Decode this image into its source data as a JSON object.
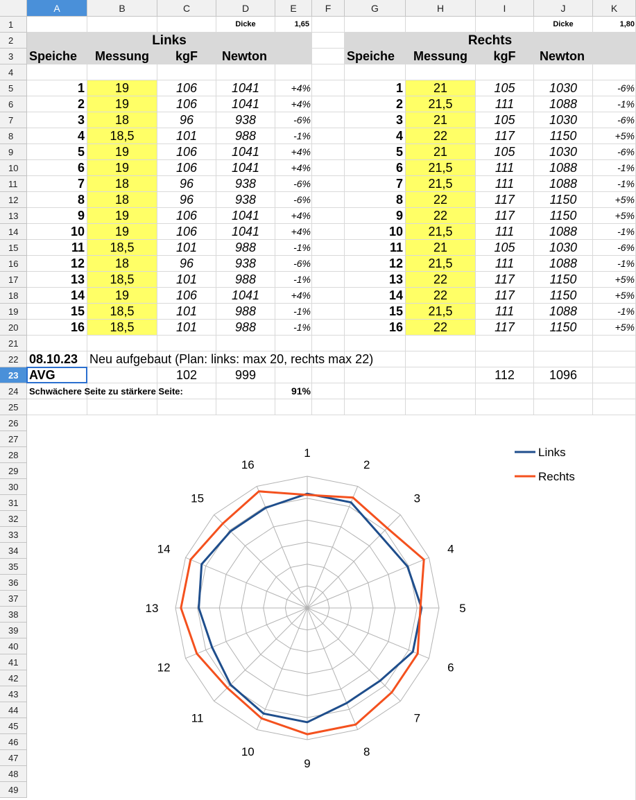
{
  "columns": [
    "A",
    "B",
    "C",
    "D",
    "E",
    "F",
    "G",
    "H",
    "I",
    "J",
    "K"
  ],
  "selected_column": "A",
  "selected_row": "23",
  "rows": [
    "1",
    "2",
    "3",
    "4",
    "5",
    "6",
    "7",
    "8",
    "9",
    "10",
    "11",
    "12",
    "13",
    "14",
    "15",
    "16",
    "17",
    "18",
    "19",
    "20",
    "21",
    "22",
    "23",
    "24",
    "25",
    "26",
    "27",
    "28",
    "29",
    "30",
    "31",
    "32",
    "33",
    "34",
    "35",
    "36",
    "37",
    "38",
    "39",
    "40",
    "41",
    "42",
    "43",
    "44",
    "45",
    "46",
    "47",
    "48",
    "49"
  ],
  "dicke": {
    "label": "Dicke",
    "left_value": "1,65",
    "right_value": "1,80"
  },
  "left": {
    "title": "Links",
    "headers": [
      "Speiche",
      "Messung",
      "kgF",
      "Newton"
    ],
    "rows": [
      [
        "1",
        "19",
        "106",
        "1041",
        "+4%"
      ],
      [
        "2",
        "19",
        "106",
        "1041",
        "+4%"
      ],
      [
        "3",
        "18",
        "96",
        "938",
        "-6%"
      ],
      [
        "4",
        "18,5",
        "101",
        "988",
        "-1%"
      ],
      [
        "5",
        "19",
        "106",
        "1041",
        "+4%"
      ],
      [
        "6",
        "19",
        "106",
        "1041",
        "+4%"
      ],
      [
        "7",
        "18",
        "96",
        "938",
        "-6%"
      ],
      [
        "8",
        "18",
        "96",
        "938",
        "-6%"
      ],
      [
        "9",
        "19",
        "106",
        "1041",
        "+4%"
      ],
      [
        "10",
        "19",
        "106",
        "1041",
        "+4%"
      ],
      [
        "11",
        "18,5",
        "101",
        "988",
        "-1%"
      ],
      [
        "12",
        "18",
        "96",
        "938",
        "-6%"
      ],
      [
        "13",
        "18,5",
        "101",
        "988",
        "-1%"
      ],
      [
        "14",
        "19",
        "106",
        "1041",
        "+4%"
      ],
      [
        "15",
        "18,5",
        "101",
        "988",
        "-1%"
      ],
      [
        "16",
        "18,5",
        "101",
        "988",
        "-1%"
      ]
    ]
  },
  "right": {
    "title": "Rechts",
    "headers": [
      "Speiche",
      "Messung",
      "kgF",
      "Newton"
    ],
    "rows": [
      [
        "1",
        "21",
        "105",
        "1030",
        "-6%"
      ],
      [
        "2",
        "21,5",
        "111",
        "1088",
        "-1%"
      ],
      [
        "3",
        "21",
        "105",
        "1030",
        "-6%"
      ],
      [
        "4",
        "22",
        "117",
        "1150",
        "+5%"
      ],
      [
        "5",
        "21",
        "105",
        "1030",
        "-6%"
      ],
      [
        "6",
        "21,5",
        "111",
        "1088",
        "-1%"
      ],
      [
        "7",
        "21,5",
        "111",
        "1088",
        "-1%"
      ],
      [
        "8",
        "22",
        "117",
        "1150",
        "+5%"
      ],
      [
        "9",
        "22",
        "117",
        "1150",
        "+5%"
      ],
      [
        "10",
        "21,5",
        "111",
        "1088",
        "-1%"
      ],
      [
        "11",
        "21",
        "105",
        "1030",
        "-6%"
      ],
      [
        "12",
        "21,5",
        "111",
        "1088",
        "-1%"
      ],
      [
        "13",
        "22",
        "117",
        "1150",
        "+5%"
      ],
      [
        "14",
        "22",
        "117",
        "1150",
        "+5%"
      ],
      [
        "15",
        "21,5",
        "111",
        "1088",
        "-1%"
      ],
      [
        "16",
        "22",
        "117",
        "1150",
        "+5%"
      ]
    ]
  },
  "note": {
    "date": "08.10.23",
    "text": "Neu aufgebaut (Plan: links: max 20, rechts max 22)"
  },
  "avg": {
    "label": "AVG",
    "left_kgf": "102",
    "left_newton": "999",
    "right_kgf": "112",
    "right_newton": "1096"
  },
  "ratio": {
    "label": "Schwächere Seite zu stärkere Seite:",
    "value": "91%"
  },
  "colors": {
    "highlight": "#ffff66",
    "header_band": "#d9d9d9",
    "links": "#1f4e8c",
    "rechts": "#f4511e",
    "selection": "#2a6fcf"
  },
  "chart_data": {
    "type": "radar",
    "categories": [
      "1",
      "2",
      "3",
      "4",
      "5",
      "6",
      "7",
      "8",
      "9",
      "10",
      "11",
      "12",
      "13",
      "14",
      "15",
      "16"
    ],
    "series": [
      {
        "name": "Links",
        "values": [
          1041,
          1041,
          938,
          988,
          1041,
          1041,
          938,
          938,
          1041,
          1041,
          988,
          938,
          988,
          1041,
          988,
          988
        ]
      },
      {
        "name": "Rechts",
        "values": [
          1030,
          1088,
          1030,
          1150,
          1030,
          1088,
          1088,
          1150,
          1150,
          1088,
          1030,
          1088,
          1150,
          1150,
          1088,
          1150
        ]
      }
    ],
    "legend": "top-right",
    "grid": true
  }
}
